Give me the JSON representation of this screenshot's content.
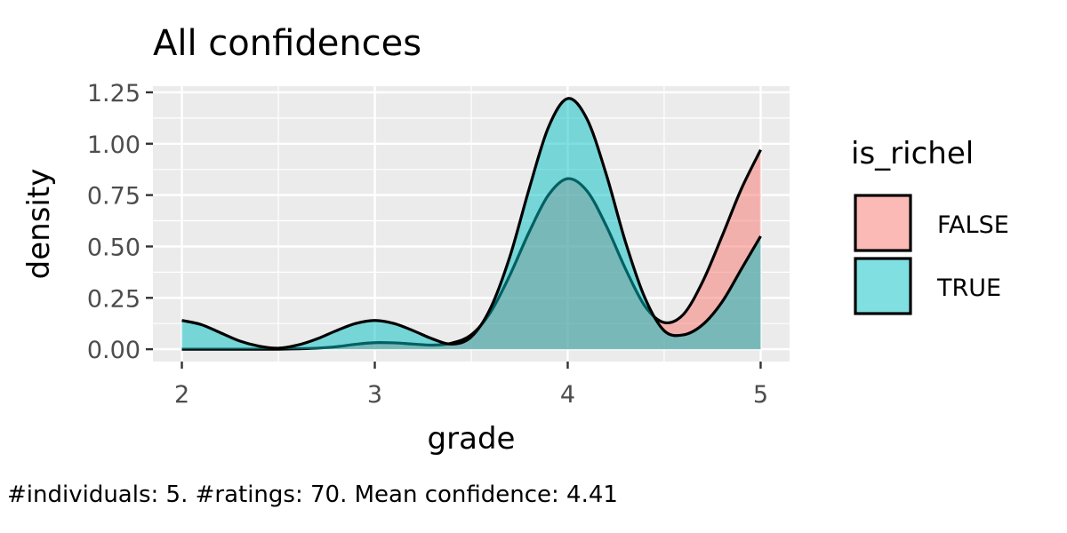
{
  "chart_data": {
    "type": "area",
    "title": "All confidences",
    "xlabel": "grade",
    "ylabel": "density",
    "caption": "#individuals: 5. #ratings: 70. Mean confidence: 4.41",
    "xlim": [
      1.85,
      5.15
    ],
    "ylim": [
      -0.06,
      1.28
    ],
    "x_ticks": [
      2,
      3,
      4,
      5
    ],
    "y_ticks": [
      0,
      0.25,
      0.5,
      0.75,
      1.0,
      1.25
    ],
    "y_tick_labels": [
      "0.00",
      "0.25",
      "0.50",
      "0.75",
      "1.00",
      "1.25"
    ],
    "grid": true,
    "legend": {
      "title": "is_richel",
      "position": "right"
    },
    "x": [
      2.0,
      2.1,
      2.2,
      2.3,
      2.4,
      2.5,
      2.6,
      2.7,
      2.8,
      2.9,
      3.0,
      3.1,
      3.2,
      3.3,
      3.4,
      3.5,
      3.6,
      3.7,
      3.8,
      3.9,
      4.0,
      4.1,
      4.2,
      4.3,
      4.4,
      4.5,
      4.6,
      4.7,
      4.8,
      4.9,
      5.0
    ],
    "series": [
      {
        "name": "FALSE",
        "color": "#F8766D",
        "values": [
          0.0,
          0.0,
          0.0,
          0.0,
          0.0,
          0.0,
          0.002,
          0.005,
          0.012,
          0.024,
          0.032,
          0.031,
          0.025,
          0.02,
          0.03,
          0.07,
          0.18,
          0.36,
          0.57,
          0.75,
          0.83,
          0.77,
          0.6,
          0.39,
          0.21,
          0.13,
          0.17,
          0.33,
          0.55,
          0.78,
          0.97
        ]
      },
      {
        "name": "TRUE",
        "color": "#00BFC4",
        "values": [
          0.14,
          0.12,
          0.08,
          0.04,
          0.015,
          0.005,
          0.02,
          0.05,
          0.09,
          0.125,
          0.14,
          0.125,
          0.09,
          0.05,
          0.025,
          0.06,
          0.2,
          0.45,
          0.78,
          1.08,
          1.22,
          1.12,
          0.85,
          0.52,
          0.25,
          0.09,
          0.07,
          0.12,
          0.23,
          0.39,
          0.55
        ]
      }
    ]
  }
}
